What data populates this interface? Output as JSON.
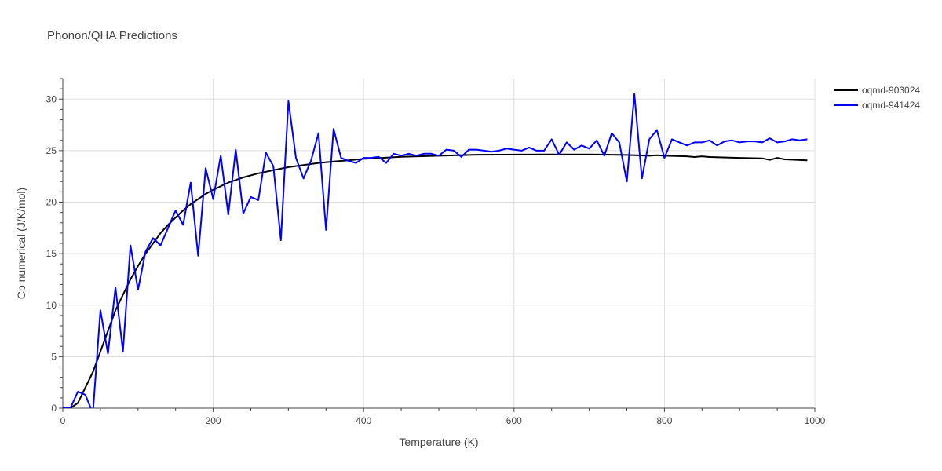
{
  "chart_data": {
    "type": "line",
    "title": "Phonon/QHA Predictions",
    "xlabel": "Temperature (K)",
    "ylabel": "Cp numerical (J/K/mol)",
    "xlim": [
      0,
      1000
    ],
    "ylim": [
      0,
      32
    ],
    "xticks": [
      0,
      200,
      400,
      600,
      800,
      1000
    ],
    "yticks": [
      0,
      5,
      10,
      15,
      20,
      25,
      30
    ],
    "grid": true,
    "legend_position": "top-right",
    "series": [
      {
        "name": "oqmd-903024",
        "color": "#000000",
        "points": [
          [
            0,
            0
          ],
          [
            10,
            0
          ],
          [
            20,
            0.5
          ],
          [
            30,
            2
          ],
          [
            40,
            3.5
          ],
          [
            50,
            5.5
          ],
          [
            60,
            7.5
          ],
          [
            70,
            9.5
          ],
          [
            80,
            11
          ],
          [
            90,
            12.5
          ],
          [
            100,
            13.8
          ],
          [
            110,
            15
          ],
          [
            120,
            16
          ],
          [
            130,
            17
          ],
          [
            140,
            17.8
          ],
          [
            150,
            18.5
          ],
          [
            160,
            19.2
          ],
          [
            170,
            19.8
          ],
          [
            180,
            20.3
          ],
          [
            190,
            20.8
          ],
          [
            200,
            21.2
          ],
          [
            220,
            21.9
          ],
          [
            240,
            22.4
          ],
          [
            260,
            22.8
          ],
          [
            280,
            23.1
          ],
          [
            300,
            23.4
          ],
          [
            320,
            23.6
          ],
          [
            340,
            23.8
          ],
          [
            360,
            23.95
          ],
          [
            380,
            24.05
          ],
          [
            400,
            24.2
          ],
          [
            450,
            24.4
          ],
          [
            500,
            24.5
          ],
          [
            550,
            24.6
          ],
          [
            600,
            24.62
          ],
          [
            650,
            24.63
          ],
          [
            700,
            24.63
          ],
          [
            750,
            24.58
          ],
          [
            780,
            24.5
          ],
          [
            790,
            24.55
          ],
          [
            800,
            24.5
          ],
          [
            830,
            24.45
          ],
          [
            840,
            24.38
          ],
          [
            850,
            24.45
          ],
          [
            860,
            24.38
          ],
          [
            900,
            24.3
          ],
          [
            930,
            24.25
          ],
          [
            940,
            24.1
          ],
          [
            950,
            24.3
          ],
          [
            960,
            24.15
          ],
          [
            990,
            24.05
          ]
        ]
      },
      {
        "name": "oqmd-941424",
        "color": "#0000ff",
        "points": [
          [
            0,
            0
          ],
          [
            10,
            0
          ],
          [
            20,
            1.6
          ],
          [
            30,
            1.3
          ],
          [
            40,
            -0.5
          ],
          [
            50,
            9.5
          ],
          [
            60,
            5.3
          ],
          [
            70,
            11.7
          ],
          [
            80,
            5.5
          ],
          [
            90,
            15.8
          ],
          [
            100,
            11.5
          ],
          [
            110,
            15.2
          ],
          [
            120,
            16.5
          ],
          [
            130,
            15.8
          ],
          [
            140,
            17.5
          ],
          [
            150,
            19.2
          ],
          [
            160,
            17.8
          ],
          [
            170,
            21.9
          ],
          [
            180,
            14.8
          ],
          [
            190,
            23.3
          ],
          [
            200,
            20.3
          ],
          [
            210,
            24.5
          ],
          [
            220,
            18.8
          ],
          [
            230,
            25.1
          ],
          [
            240,
            18.9
          ],
          [
            250,
            20.5
          ],
          [
            260,
            20.2
          ],
          [
            270,
            24.8
          ],
          [
            280,
            23.5
          ],
          [
            290,
            16.3
          ],
          [
            300,
            29.8
          ],
          [
            310,
            24.3
          ],
          [
            320,
            22.3
          ],
          [
            330,
            24
          ],
          [
            340,
            26.7
          ],
          [
            350,
            17.3
          ],
          [
            360,
            27.1
          ],
          [
            370,
            24.3
          ],
          [
            380,
            24
          ],
          [
            390,
            23.8
          ],
          [
            400,
            24.3
          ],
          [
            410,
            24.3
          ],
          [
            420,
            24.4
          ],
          [
            430,
            23.8
          ],
          [
            440,
            24.7
          ],
          [
            450,
            24.5
          ],
          [
            460,
            24.7
          ],
          [
            470,
            24.5
          ],
          [
            480,
            24.7
          ],
          [
            490,
            24.7
          ],
          [
            500,
            24.5
          ],
          [
            510,
            25.1
          ],
          [
            520,
            25
          ],
          [
            530,
            24.4
          ],
          [
            540,
            25.1
          ],
          [
            550,
            25.1
          ],
          [
            560,
            25
          ],
          [
            570,
            24.9
          ],
          [
            580,
            25
          ],
          [
            590,
            25.2
          ],
          [
            600,
            25.1
          ],
          [
            610,
            25
          ],
          [
            620,
            25.3
          ],
          [
            630,
            25
          ],
          [
            640,
            25
          ],
          [
            650,
            26.1
          ],
          [
            660,
            24.6
          ],
          [
            670,
            25.8
          ],
          [
            680,
            25.1
          ],
          [
            690,
            25.5
          ],
          [
            700,
            25.2
          ],
          [
            710,
            26
          ],
          [
            720,
            24.5
          ],
          [
            730,
            26.7
          ],
          [
            740,
            25.8
          ],
          [
            750,
            22
          ],
          [
            760,
            30.5
          ],
          [
            770,
            22.3
          ],
          [
            780,
            26.1
          ],
          [
            790,
            27
          ],
          [
            800,
            24.3
          ],
          [
            810,
            26.1
          ],
          [
            820,
            25.8
          ],
          [
            830,
            25.5
          ],
          [
            840,
            25.8
          ],
          [
            850,
            25.8
          ],
          [
            860,
            26
          ],
          [
            870,
            25.5
          ],
          [
            880,
            25.9
          ],
          [
            890,
            26
          ],
          [
            900,
            25.8
          ],
          [
            910,
            25.9
          ],
          [
            920,
            25.9
          ],
          [
            930,
            25.8
          ],
          [
            940,
            26.2
          ],
          [
            950,
            25.8
          ],
          [
            960,
            25.9
          ],
          [
            970,
            26.1
          ],
          [
            980,
            26
          ],
          [
            990,
            26.1
          ]
        ]
      }
    ]
  }
}
